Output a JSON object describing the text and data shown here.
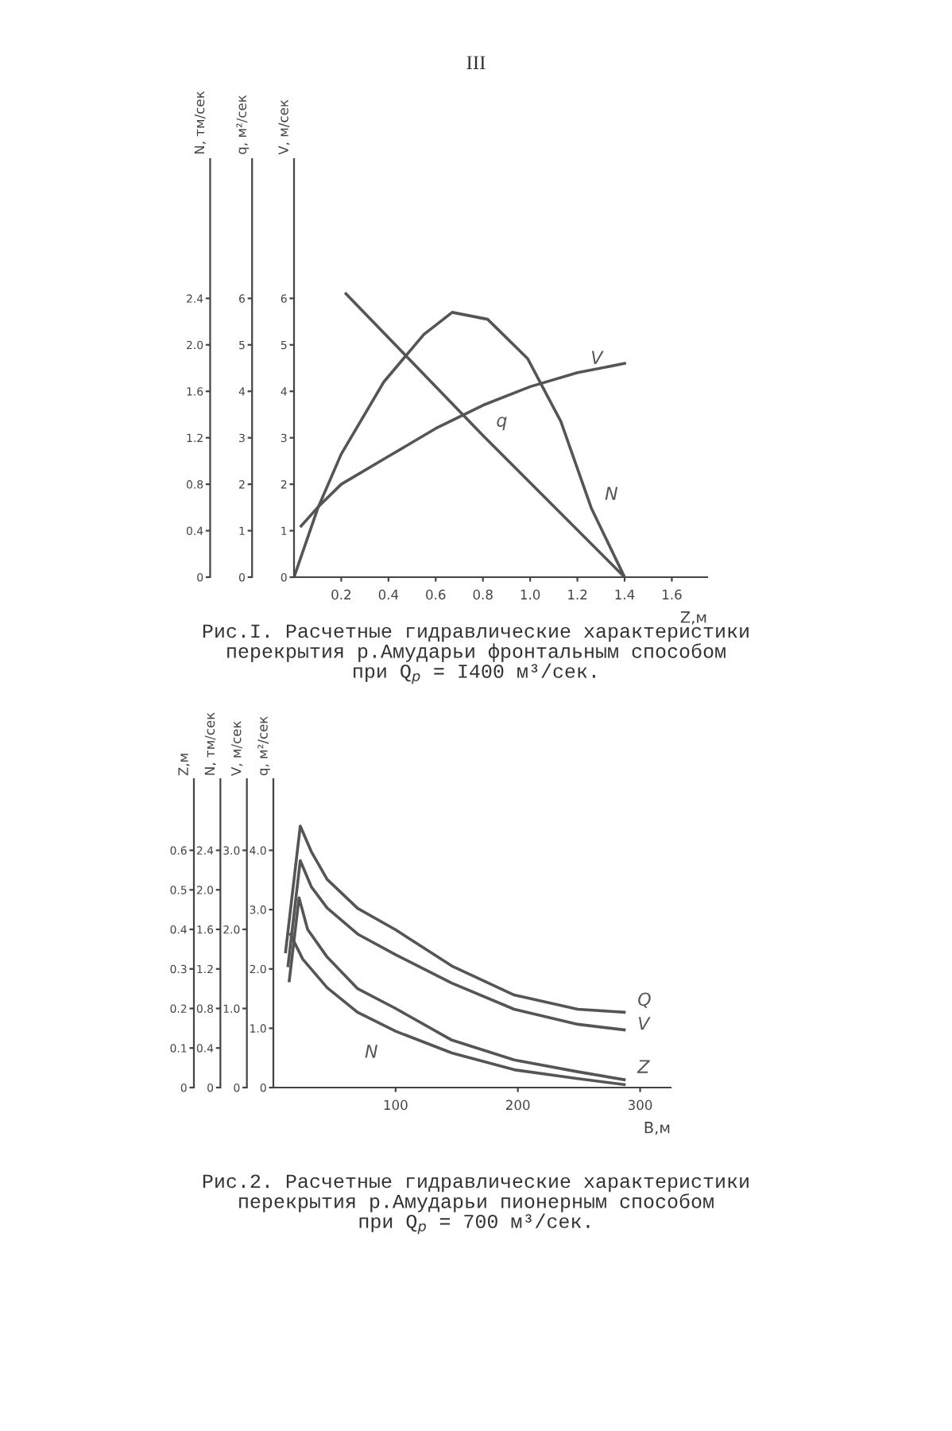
{
  "chart_data": [
    {
      "type": "line",
      "title": "Рис.I. Расчетные гидравлические характеристики\nперекрытия р.Амударьи фронтальным способом\nпри Q$_{p}$ = I400 м³/сек.",
      "annotations": [
        "III"
      ],
      "xlabel": "Z,м",
      "ylabel": "N, тм/сек",
      "y2label": "q, м²/сек",
      "y3label": "V, м/сек",
      "xlim": [
        0,
        1.75
      ],
      "xticks": [
        0.2,
        0.4,
        0.6,
        0.8,
        {
          "value": 1.0,
          "label": "1.0"
        },
        1.2,
        1.4,
        1.6
      ],
      "ylim": [
        0,
        3.6
      ],
      "yticks": [
        0,
        0.4,
        0.8,
        1.2,
        1.6,
        {
          "value": 2.0,
          "label": "2.0"
        },
        2.4
      ],
      "y2lim": [
        0,
        9
      ],
      "y2ticks": [
        0,
        1,
        2,
        3,
        4,
        5,
        6
      ],
      "y3lim": [
        0,
        9
      ],
      "y3ticks": [
        0,
        1,
        2,
        3,
        4,
        5,
        6
      ],
      "series": [
        {
          "name": "q",
          "axis": "y2",
          "color": "#555555",
          "x": [
            0.22,
            0.8,
            1.4
          ],
          "values": [
            6.1,
            3.05,
            0
          ]
        },
        {
          "name": "N",
          "color": "#555555",
          "x": [
            0,
            0.1,
            0.2,
            0.38,
            0.55,
            0.67,
            0.82,
            0.99,
            1.13,
            1.26,
            1.4
          ],
          "values": [
            0,
            0.59,
            1.06,
            1.68,
            2.09,
            2.28,
            2.22,
            1.88,
            1.34,
            0.59,
            0
          ]
        },
        {
          "name": "V",
          "axis": "y3",
          "color": "#555555",
          "x": [
            0.03,
            0.1,
            0.2,
            0.4,
            0.6,
            0.8,
            1.0,
            1.2,
            1.4
          ],
          "values": [
            1.1,
            1.5,
            2.0,
            2.6,
            3.2,
            3.7,
            4.1,
            4.4,
            4.6
          ]
        }
      ]
    },
    {
      "type": "line",
      "tick_labels": "y",
      "ylabel": "Z,м",
      "y2label": "N, тм/сек",
      "xlim": [
        0,
        325
      ],
      "ylim": [
        0,
        0.78
      ],
      "yticks": [
        0,
        0.1,
        0.2,
        0.3,
        0.4,
        0.5,
        0.6
      ],
      "y2lim": [
        0,
        3.12
      ],
      "y2ticks": [
        0,
        0.4,
        0.8,
        1.2,
        1.6,
        {
          "value": 2.0,
          "label": "2.0"
        },
        2.4
      ],
      "series": [
        {
          "name": "Z",
          "color": "#555555",
          "x": [
            13,
            21,
            28,
            44,
            69,
            100,
            146,
            197,
            249,
            287
          ],
          "values": [
            0.27,
            0.48,
            0.4,
            0.33,
            0.25,
            0.2,
            0.12,
            0.07,
            0.04,
            0.02
          ]
        },
        {
          "name": "N",
          "axis": "y2",
          "color": "#555555",
          "x": [
            14,
            24,
            44,
            69,
            100,
            146,
            197,
            249,
            287
          ],
          "values": [
            1.55,
            1.3,
            1.01,
            0.76,
            0.57,
            0.35,
            0.18,
            0.09,
            0.03
          ]
        }
      ]
    },
    {
      "type": "line",
      "title": "Рис.2. Расчетные гидравлические характеристики\nперекрытия р.Амударьи пионерным способом\nпри Q$_{p}$ = 700 м³/сек.",
      "xlabel": "B,м",
      "ylabel": "V, м/сек",
      "y2label": "q, м²/сек",
      "xlim": [
        0,
        325
      ],
      "xticks": [
        100,
        200,
        300
      ],
      "ylim": [
        0,
        3.9
      ],
      "yticks": [
        0,
        {
          "value": 1.0,
          "label": "1.0"
        },
        {
          "value": 2.0,
          "label": "2.0"
        },
        {
          "value": 3.0,
          "label": "3.0"
        }
      ],
      "y2lim": [
        0,
        5.2
      ],
      "y2ticks": [
        0,
        {
          "value": 1.0,
          "label": "1.0"
        },
        {
          "value": 2.0,
          "label": "2.0"
        },
        {
          "value": 3.0,
          "label": "3.0"
        },
        {
          "value": 4.0,
          "label": "4.0"
        }
      ],
      "series": [
        {
          "name": "Q",
          "axis": "y2",
          "color": "#555555",
          "x": [
            10,
            22,
            31,
            44,
            69,
            100,
            146,
            197,
            249,
            287
          ],
          "values": [
            2.29,
            4.41,
            3.98,
            3.51,
            3.02,
            2.66,
            2.05,
            1.56,
            1.32,
            1.27
          ]
        },
        {
          "name": "V",
          "color": "#555555",
          "x": [
            12,
            22,
            31,
            44,
            69,
            100,
            146,
            197,
            249,
            287
          ],
          "values": [
            1.54,
            2.87,
            2.54,
            2.27,
            1.94,
            1.68,
            1.32,
            0.99,
            0.8,
            0.73
          ]
        }
      ]
    }
  ]
}
